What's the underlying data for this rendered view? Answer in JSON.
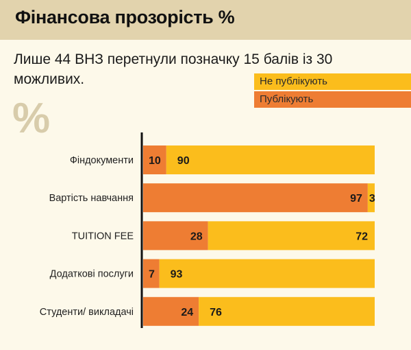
{
  "header": {
    "title": "Фінансова прозорість %"
  },
  "subtitle": "Лише 44 ВНЗ перетнули позначку 15 балів із 30 можливих.",
  "decor": {
    "percent_symbol": "%"
  },
  "colors": {
    "publish": "#ee7d33",
    "not_publish": "#fbbd1c",
    "header_bg": "#e2d3ad",
    "page_bg": "#fdf9ea"
  },
  "chart_data": {
    "type": "bar",
    "orientation": "horizontal",
    "stacked": true,
    "title": "Фінансова прозорість %",
    "subtitle": "Лише 44 ВНЗ перетнули позначку 15 балів із 30 можливих.",
    "xlabel": "",
    "ylabel": "",
    "xlim": [
      0,
      100
    ],
    "grid": false,
    "legend_position": "top-right",
    "categories": [
      "Фіндокументи",
      "Вартість навчання",
      "TUITION FEE",
      "Додаткові послуги",
      "Студенти/ викладачі"
    ],
    "series": [
      {
        "name": "Публікують",
        "color": "#ee7d33",
        "values": [
          10,
          97,
          28,
          7,
          24
        ]
      },
      {
        "name": "Не публікують",
        "color": "#fbbd1c",
        "values": [
          90,
          3,
          72,
          93,
          76
        ]
      }
    ],
    "legend": [
      "Не публікують",
      "Публікують"
    ]
  }
}
